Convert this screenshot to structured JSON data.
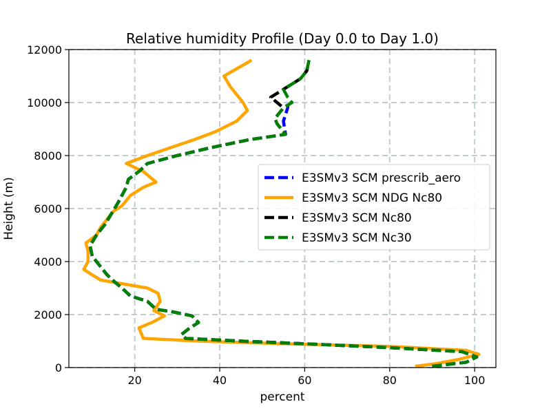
{
  "chart_data": {
    "type": "line",
    "title": "Relative humidity Profile (Day 0.0 to Day 1.0)",
    "xlabel": "percent",
    "ylabel": "Height (m)",
    "xlim": [
      4.5,
      105
    ],
    "ylim": [
      0,
      12000
    ],
    "xticks": [
      20,
      40,
      60,
      80,
      100
    ],
    "yticks": [
      0,
      2000,
      4000,
      6000,
      8000,
      10000,
      12000
    ],
    "grid": true,
    "legend_position": "center-right",
    "series": [
      {
        "name": "E3SMv3 SCM NDG Nc80",
        "color": "#ffa500",
        "style": "solid",
        "points": [
          [
            86,
            50
          ],
          [
            91,
            150
          ],
          [
            96,
            300
          ],
          [
            101,
            500
          ],
          [
            98,
            650
          ],
          [
            80,
            800
          ],
          [
            55,
            900
          ],
          [
            35,
            1000
          ],
          [
            22,
            1100
          ],
          [
            21.5,
            1300
          ],
          [
            21,
            1500
          ],
          [
            24,
            1700
          ],
          [
            27,
            1950
          ],
          [
            24.5,
            2150
          ],
          [
            26,
            2500
          ],
          [
            25.5,
            2800
          ],
          [
            23,
            3000
          ],
          [
            12,
            3300
          ],
          [
            10,
            3500
          ],
          [
            8,
            3700
          ],
          [
            9,
            4000
          ],
          [
            9,
            4400
          ],
          [
            8.5,
            4700
          ],
          [
            11,
            5000
          ],
          [
            12,
            5300
          ],
          [
            14,
            5700
          ],
          [
            15,
            5900
          ],
          [
            17,
            6100
          ],
          [
            19,
            6500
          ],
          [
            22,
            6800
          ],
          [
            25,
            7000
          ],
          [
            22,
            7400
          ],
          [
            18,
            7700
          ],
          [
            23,
            8000
          ],
          [
            28.5,
            8300
          ],
          [
            34,
            8600
          ],
          [
            39,
            8900
          ],
          [
            44,
            9300
          ],
          [
            46.5,
            9700
          ],
          [
            45.5,
            10000
          ],
          [
            44,
            10300
          ],
          [
            42.5,
            10600
          ],
          [
            41,
            11000
          ],
          [
            47.5,
            11600
          ]
        ]
      },
      {
        "name": "E3SMv3 SCM Nc80",
        "color": "#000000",
        "style": "dashed",
        "points": [
          [
            90,
            50
          ],
          [
            98,
            200
          ],
          [
            100.5,
            400
          ],
          [
            97,
            600
          ],
          [
            80,
            750
          ],
          [
            60,
            900
          ],
          [
            45,
            1000
          ],
          [
            32,
            1100
          ],
          [
            31,
            1250
          ],
          [
            33,
            1500
          ],
          [
            35,
            1700
          ],
          [
            33.5,
            1950
          ],
          [
            29,
            2100
          ],
          [
            25,
            2200
          ],
          [
            23,
            2500
          ],
          [
            19,
            2700
          ],
          [
            17,
            3000
          ],
          [
            15.5,
            3200
          ],
          [
            13.5,
            3500
          ],
          [
            12,
            3800
          ],
          [
            10,
            4200
          ],
          [
            9.5,
            4600
          ],
          [
            11,
            5000
          ],
          [
            13,
            5400
          ],
          [
            14.5,
            5800
          ],
          [
            16,
            6200
          ],
          [
            17,
            6500
          ],
          [
            18,
            6800
          ],
          [
            18.5,
            7100
          ],
          [
            21,
            7400
          ],
          [
            23,
            7700
          ],
          [
            30,
            8000
          ],
          [
            38,
            8300
          ],
          [
            47,
            8600
          ],
          [
            55.5,
            8800
          ],
          [
            53.5,
            9200
          ],
          [
            53,
            9400
          ],
          [
            55,
            9800
          ],
          [
            53.5,
            10000
          ],
          [
            52,
            10200
          ],
          [
            55,
            10500
          ],
          [
            59,
            10900
          ],
          [
            60.5,
            11200
          ],
          [
            61,
            11600
          ]
        ]
      },
      {
        "name": "E3SMv3 SCM prescrib_aero",
        "color": "#0000ff",
        "style": "dashed",
        "points": [
          [
            90,
            50
          ],
          [
            98,
            200
          ],
          [
            100.5,
            400
          ],
          [
            97,
            600
          ],
          [
            80,
            750
          ],
          [
            60,
            900
          ],
          [
            45,
            1000
          ],
          [
            32,
            1100
          ],
          [
            31,
            1250
          ],
          [
            33,
            1500
          ],
          [
            35,
            1700
          ],
          [
            33.5,
            1950
          ],
          [
            29,
            2100
          ],
          [
            25,
            2200
          ],
          [
            23,
            2500
          ],
          [
            19,
            2700
          ],
          [
            17,
            3000
          ],
          [
            15.5,
            3200
          ],
          [
            13.5,
            3500
          ],
          [
            12,
            3800
          ],
          [
            10,
            4200
          ],
          [
            9.5,
            4600
          ],
          [
            11,
            5000
          ],
          [
            13,
            5400
          ],
          [
            14.5,
            5800
          ],
          [
            16,
            6200
          ],
          [
            17,
            6500
          ],
          [
            18,
            6800
          ],
          [
            18.5,
            7100
          ],
          [
            21,
            7400
          ],
          [
            23,
            7700
          ],
          [
            30,
            8000
          ],
          [
            38,
            8300
          ],
          [
            47,
            8600
          ],
          [
            55.5,
            8800
          ],
          [
            55,
            9300
          ],
          [
            56,
            9800
          ],
          [
            56,
            10100
          ]
        ]
      },
      {
        "name": "E3SMv3 SCM Nc30",
        "color": "#008000",
        "style": "dashed",
        "points": [
          [
            90,
            50
          ],
          [
            98,
            200
          ],
          [
            100.5,
            400
          ],
          [
            97,
            600
          ],
          [
            80,
            750
          ],
          [
            60,
            900
          ],
          [
            45,
            1000
          ],
          [
            32,
            1100
          ],
          [
            31,
            1250
          ],
          [
            33,
            1500
          ],
          [
            35,
            1700
          ],
          [
            33.5,
            1950
          ],
          [
            29,
            2100
          ],
          [
            25,
            2200
          ],
          [
            23,
            2500
          ],
          [
            19,
            2700
          ],
          [
            17,
            3000
          ],
          [
            15.5,
            3200
          ],
          [
            13.5,
            3500
          ],
          [
            12,
            3800
          ],
          [
            10,
            4200
          ],
          [
            9.5,
            4600
          ],
          [
            11,
            5000
          ],
          [
            13,
            5400
          ],
          [
            14.5,
            5800
          ],
          [
            16,
            6200
          ],
          [
            17,
            6500
          ],
          [
            18,
            6800
          ],
          [
            18.5,
            7100
          ],
          [
            21,
            7400
          ],
          [
            23,
            7700
          ],
          [
            30,
            8000
          ],
          [
            38,
            8300
          ],
          [
            47,
            8600
          ],
          [
            55.5,
            8800
          ],
          [
            53.5,
            9200
          ],
          [
            53,
            9400
          ],
          [
            55,
            9800
          ],
          [
            57,
            10000
          ],
          [
            56,
            10200
          ],
          [
            55,
            10500
          ],
          [
            59,
            10900
          ],
          [
            60.5,
            11200
          ],
          [
            61,
            11600
          ]
        ]
      }
    ],
    "legend_order": [
      "E3SMv3 SCM prescrib_aero",
      "E3SMv3 SCM NDG Nc80",
      "E3SMv3 SCM Nc80",
      "E3SMv3 SCM Nc30"
    ]
  }
}
